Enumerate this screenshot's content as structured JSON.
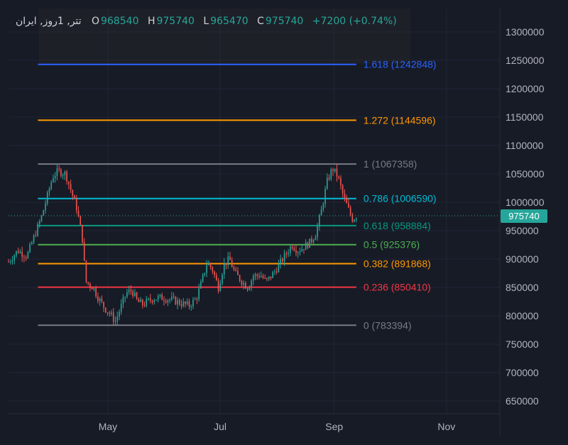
{
  "header": {
    "symbol": "تتر, 1روز, ایران",
    "open_label": "O",
    "open": "968540",
    "high_label": "H",
    "high": "975740",
    "low_label": "L",
    "low": "965470",
    "close_label": "C",
    "close": "975740",
    "change": "+7200 (+0.74%)"
  },
  "colors": {
    "background": "#171b26",
    "grid": "#222635",
    "axis_text": "#b2b5be",
    "up": "#26a69a",
    "down": "#ef5350",
    "last_price_bg": "#26a69a"
  },
  "chart_data": {
    "type": "candlestick",
    "y_axis": {
      "position": "right",
      "ticks": [
        650000,
        700000,
        750000,
        800000,
        850000,
        900000,
        950000,
        1000000,
        1050000,
        1100000,
        1150000,
        1200000,
        1250000,
        1300000
      ],
      "ylim": [
        625000,
        1320000
      ]
    },
    "x_axis": {
      "tick_labels": [
        "May",
        "Jul",
        "Sep",
        "Nov"
      ],
      "tick_dates": [
        "2024-05-01",
        "2024-07-01",
        "2024-09-01",
        "2024-11-01"
      ],
      "xlim": [
        "2024-03-08",
        "2024-11-30"
      ]
    },
    "grid": true,
    "last_price": {
      "value": 975740,
      "label": "975740"
    },
    "fibonacci": {
      "start_date": "2024-03-24",
      "end_date": "2024-09-13",
      "levels": [
        {
          "ratio": "0",
          "price": 783394,
          "label": "0 (783394)",
          "color": "#787b86"
        },
        {
          "ratio": "0.236",
          "price": 850410,
          "label": "0.236 (850410)",
          "color": "#f23645"
        },
        {
          "ratio": "0.382",
          "price": 891868,
          "label": "0.382 (891868)",
          "color": "#ff9800"
        },
        {
          "ratio": "0.5",
          "price": 925376,
          "label": "0.5 (925376)",
          "color": "#4caf50"
        },
        {
          "ratio": "0.618",
          "price": 958884,
          "label": "0.618 (958884)",
          "color": "#089981"
        },
        {
          "ratio": "0.786",
          "price": 1006590,
          "label": "0.786 (1006590)",
          "color": "#00bcd4"
        },
        {
          "ratio": "1",
          "price": 1067358,
          "label": "1 (1067358)",
          "color": "#787b86"
        },
        {
          "ratio": "1.272",
          "price": 1144596,
          "label": "1.272 (1144596)",
          "color": "#ff9800"
        },
        {
          "ratio": "1.618",
          "price": 1242848,
          "label": "1.618 (1242848)",
          "color": "#2962ff"
        }
      ]
    },
    "price_path": [
      [
        "2024-03-08",
        895000
      ],
      [
        "2024-03-13",
        915000
      ],
      [
        "2024-03-18",
        905000
      ],
      [
        "2024-03-22",
        940000
      ],
      [
        "2024-03-26",
        975000
      ],
      [
        "2024-03-29",
        1010000
      ],
      [
        "2024-04-01",
        1045000
      ],
      [
        "2024-04-04",
        1055000
      ],
      [
        "2024-04-08",
        1050000
      ],
      [
        "2024-04-11",
        1020000
      ],
      [
        "2024-04-14",
        990000
      ],
      [
        "2024-04-17",
        940000
      ],
      [
        "2024-04-19",
        860000
      ],
      [
        "2024-04-23",
        850000
      ],
      [
        "2024-04-26",
        830000
      ],
      [
        "2024-04-29",
        815000
      ],
      [
        "2024-05-03",
        800000
      ],
      [
        "2024-05-05",
        790000
      ],
      [
        "2024-05-08",
        815000
      ],
      [
        "2024-05-11",
        840000
      ],
      [
        "2024-05-14",
        845000
      ],
      [
        "2024-05-17",
        825000
      ],
      [
        "2024-05-20",
        820000
      ],
      [
        "2024-05-25",
        830000
      ],
      [
        "2024-05-30",
        832000
      ],
      [
        "2024-06-05",
        828000
      ],
      [
        "2024-06-10",
        822000
      ],
      [
        "2024-06-14",
        818000
      ],
      [
        "2024-06-18",
        830000
      ],
      [
        "2024-06-21",
        860000
      ],
      [
        "2024-06-24",
        895000
      ],
      [
        "2024-06-27",
        880000
      ],
      [
        "2024-06-30",
        850000
      ],
      [
        "2024-07-03",
        890000
      ],
      [
        "2024-07-06",
        900000
      ],
      [
        "2024-07-09",
        875000
      ],
      [
        "2024-07-13",
        860000
      ],
      [
        "2024-07-16",
        850000
      ],
      [
        "2024-07-19",
        870000
      ],
      [
        "2024-07-23",
        872000
      ],
      [
        "2024-07-26",
        860000
      ],
      [
        "2024-07-30",
        875000
      ],
      [
        "2024-08-02",
        890000
      ],
      [
        "2024-08-06",
        910000
      ],
      [
        "2024-08-09",
        925000
      ],
      [
        "2024-08-12",
        915000
      ],
      [
        "2024-08-15",
        920000
      ],
      [
        "2024-08-19",
        930000
      ],
      [
        "2024-08-22",
        945000
      ],
      [
        "2024-08-25",
        985000
      ],
      [
        "2024-08-28",
        1035000
      ],
      [
        "2024-08-31",
        1060000
      ],
      [
        "2024-09-03",
        1045000
      ],
      [
        "2024-09-06",
        1010000
      ],
      [
        "2024-09-09",
        985000
      ],
      [
        "2024-09-11",
        970000
      ],
      [
        "2024-09-13",
        975740
      ]
    ],
    "candle_count": 180
  }
}
